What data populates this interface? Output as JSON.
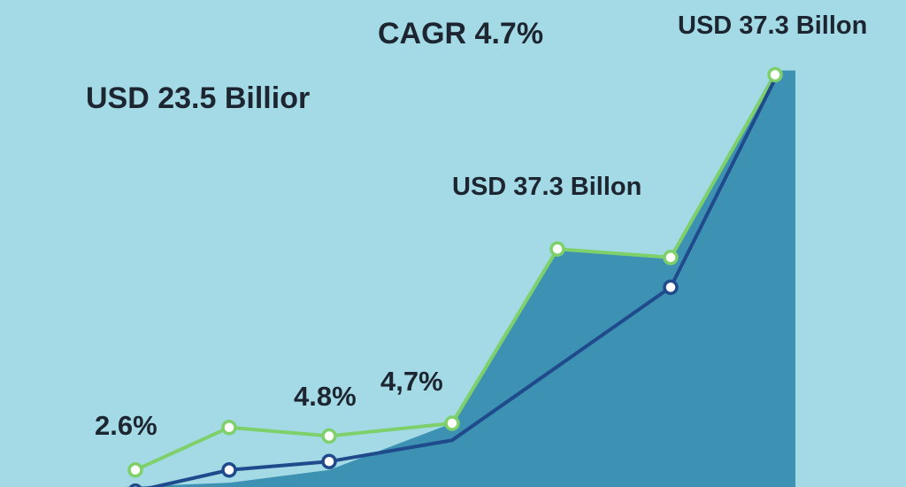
{
  "chart_data": {
    "type": "line",
    "title": "CAGR 4.7%",
    "xlabel": "",
    "ylabel": "",
    "grid": false,
    "legend": "none",
    "x": [
      0,
      1,
      2,
      3,
      4,
      5,
      6,
      7
    ],
    "ylim": [
      0,
      100
    ],
    "series": [
      {
        "name": "",
        "color": "#7ed06a",
        "values": [
          4,
          14,
          12,
          15,
          56,
          54,
          97,
          null
        ],
        "markers": [
          true,
          true,
          true,
          true,
          true,
          true,
          true,
          false
        ]
      },
      {
        "name": "",
        "color": "#1f4a8c",
        "values": [
          -1,
          4,
          6,
          11,
          null,
          47,
          96,
          null
        ],
        "markers": [
          true,
          true,
          true,
          false,
          false,
          true,
          false,
          false
        ]
      }
    ],
    "area": {
      "color": "#3d92b3",
      "values": [
        null,
        1,
        4,
        15,
        56,
        54,
        98,
        98
      ]
    },
    "annotations": [
      {
        "text": "CAGR 4.7%",
        "size": 34
      },
      {
        "text": "USD 37.3 Billon",
        "size": 29
      },
      {
        "text": "USD 23.5 Billior",
        "size": 34
      },
      {
        "text": "USD 37.3 Billon",
        "size": 29
      },
      {
        "text": "4.8%",
        "size": 31
      },
      {
        "text": "4,7%",
        "size": 31
      },
      {
        "text": "2.6%",
        "size": 31
      }
    ]
  }
}
